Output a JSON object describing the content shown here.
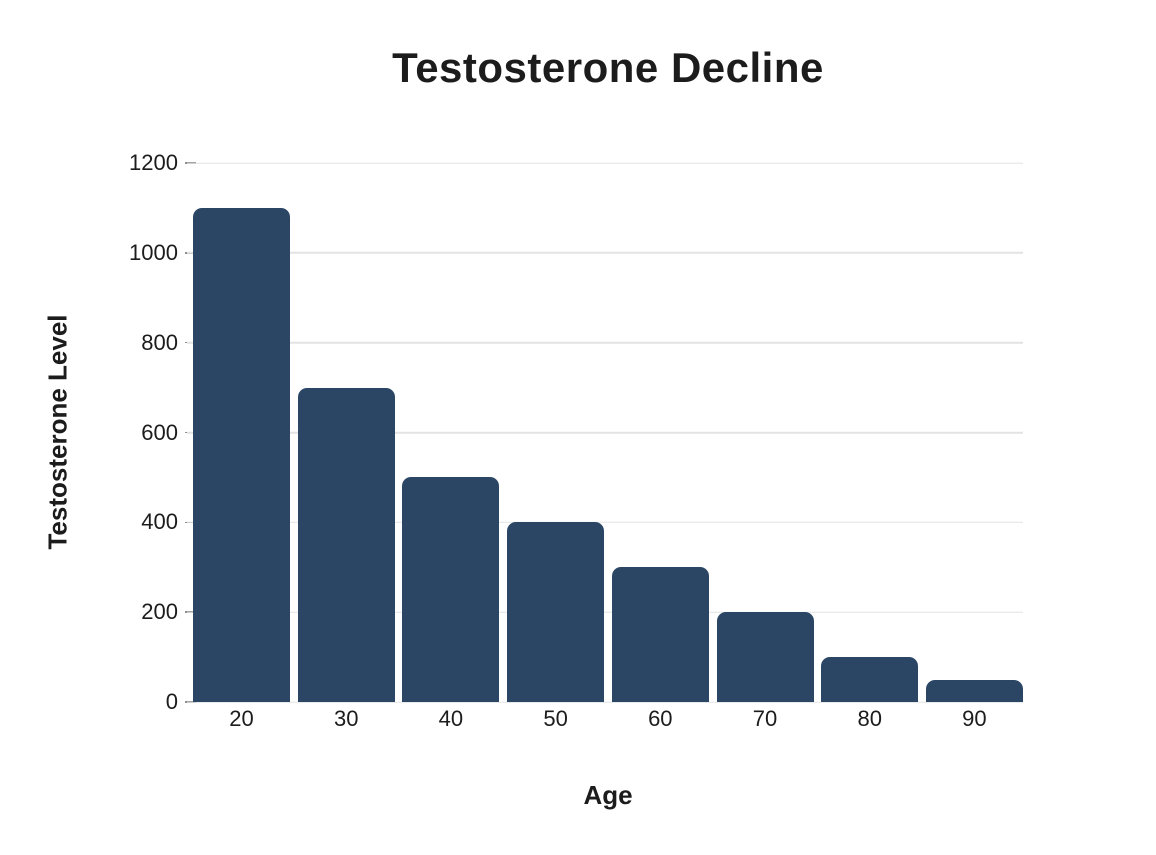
{
  "chart_data": {
    "type": "bar",
    "title": "Testosterone Decline",
    "xlabel": "Age",
    "ylabel": "Testosterone Level",
    "categories": [
      "20",
      "30",
      "40",
      "50",
      "60",
      "70",
      "80",
      "90"
    ],
    "values": [
      1100,
      700,
      500,
      400,
      300,
      200,
      100,
      50
    ],
    "ylim": [
      0,
      1200
    ],
    "yticks": [
      0,
      200,
      400,
      600,
      800,
      1000,
      1200
    ],
    "grid": "horizontal",
    "legend": "none",
    "colors": {
      "bar": "#2b4664",
      "gridline": "#e3e3e3",
      "tick_mark": "#8f8f8f",
      "text": "#1c1c1c",
      "background": "#ffffff"
    }
  }
}
